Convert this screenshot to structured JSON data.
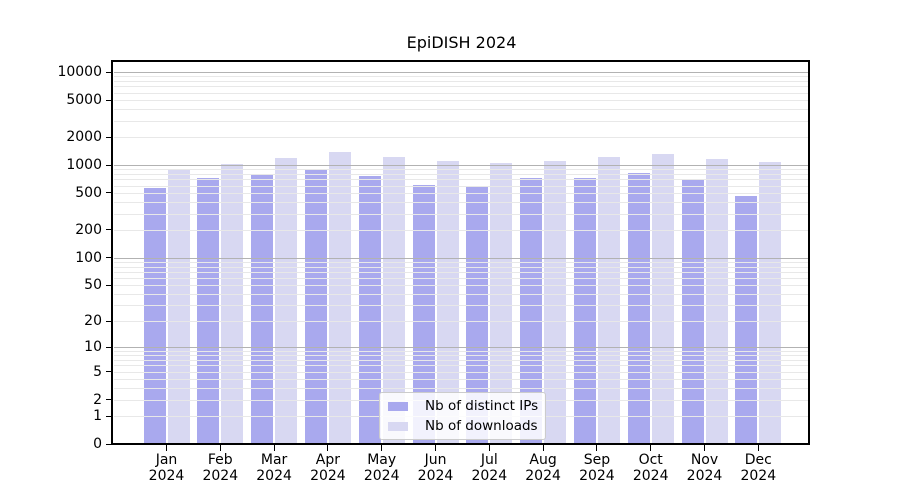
{
  "title": "EpiDISH 2024",
  "chart_data": {
    "type": "bar",
    "title": "EpiDISH 2024",
    "categories": [
      "Jan",
      "Feb",
      "Mar",
      "Apr",
      "May",
      "Jun",
      "Jul",
      "Aug",
      "Sep",
      "Oct",
      "Nov",
      "Dec"
    ],
    "year_label": "2024",
    "series": [
      {
        "name": "Nb of distinct IPs",
        "color": "#a9a9ee",
        "values": [
          560,
          725,
          800,
          905,
          770,
          610,
          590,
          715,
          730,
          820,
          700,
          465
        ]
      },
      {
        "name": "Nb of downloads",
        "color": "#d8d8f2",
        "values": [
          885,
          1030,
          1190,
          1370,
          1210,
          1110,
          1040,
          1110,
          1220,
          1310,
          1160,
          1075
        ]
      }
    ],
    "yticks": [
      10000,
      5000,
      2000,
      1000,
      500,
      200,
      100,
      50,
      20,
      10,
      5,
      2,
      1,
      0
    ],
    "scale": "log10(1+v)",
    "ylim": [
      0,
      12800
    ],
    "xlabel": "",
    "ylabel": "",
    "grid": "horizontal",
    "legend_position": "lower center",
    "colors": {
      "major_grid": "#b2b2b2",
      "minor_grid": "#e8e8e8",
      "axis": "#000000",
      "background": "#ffffff"
    }
  }
}
